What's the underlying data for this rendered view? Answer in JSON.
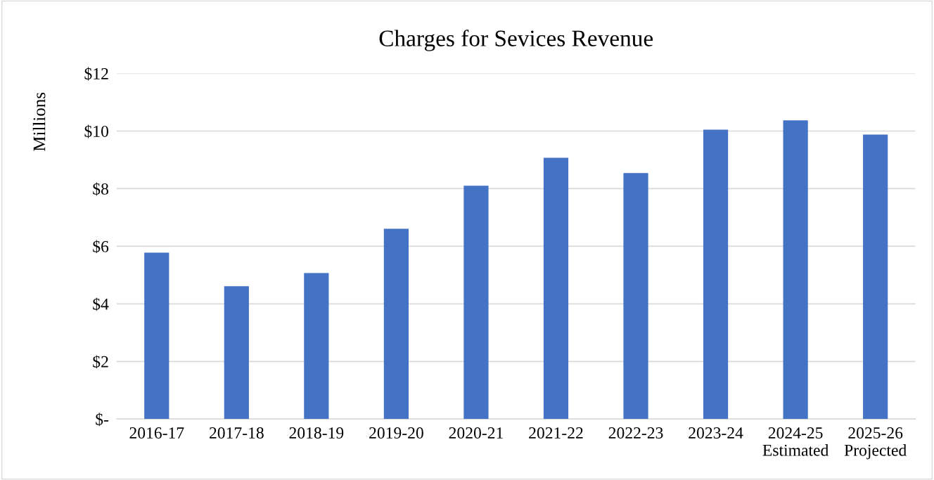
{
  "chart_data": {
    "type": "bar",
    "title": "Charges for Sevices Revenue",
    "ylabel": "Millions",
    "categories": [
      "2016-17",
      "2017-18",
      "2018-19",
      "2019-20",
      "2020-21",
      "2021-22",
      "2022-23",
      "2023-24",
      "2024-25\nEstimated",
      "2025-26\nProjected"
    ],
    "values": [
      5.78,
      4.61,
      5.07,
      6.61,
      8.1,
      9.07,
      8.54,
      10.05,
      10.37,
      9.88
    ],
    "color": "#4472c4",
    "ylim": [
      0,
      12
    ],
    "yticks": [
      {
        "value": 0,
        "label": "$-"
      },
      {
        "value": 2,
        "label": "$2"
      },
      {
        "value": 4,
        "label": "$4"
      },
      {
        "value": 6,
        "label": "$6"
      },
      {
        "value": 8,
        "label": "$8"
      },
      {
        "value": 10,
        "label": "$10"
      },
      {
        "value": 12,
        "label": "$12"
      }
    ],
    "grid": "y",
    "legend": false
  }
}
